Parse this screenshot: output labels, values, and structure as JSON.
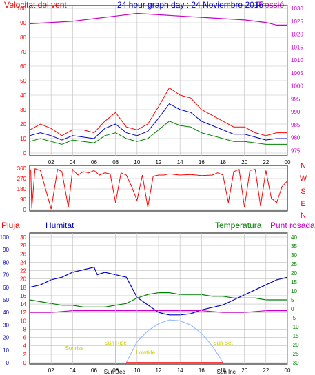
{
  "header": {
    "title": "24 hour graph day : 24 Noviembre 2015",
    "left_label": "Velocitat del vent",
    "right_label": "Pressió"
  },
  "colors": {
    "frame": "#000000",
    "red": "#ff0000",
    "blue": "#0000cc",
    "green": "#008000",
    "magenta": "#cc00cc",
    "yellow": "#cccc00",
    "lightblue": "#99bbff",
    "grid": "#bdbdbd"
  },
  "chart_data": [
    {
      "type": "line",
      "panel": "wind",
      "xlabel": "",
      "ylabel": "",
      "x_ticks": [
        "02",
        "04",
        "06",
        "08",
        "10",
        "12",
        "14",
        "16",
        "18",
        "20",
        "22",
        "00"
      ],
      "y_left_ticks": [
        0,
        10,
        20,
        30,
        40,
        50,
        60,
        70,
        80,
        90,
        100
      ],
      "y_left_lim": [
        0,
        100
      ],
      "y_right_ticks": [
        975,
        980,
        985,
        990,
        995,
        1000,
        1005,
        1010,
        1015,
        1020,
        1025,
        1030
      ],
      "y_right_lim": [
        974,
        1030
      ],
      "grid": true,
      "series": [
        {
          "color": "red",
          "kind": "gusts",
          "axis": "left",
          "hours": [
            0,
            1,
            2,
            3,
            4,
            5,
            6,
            7,
            8,
            9,
            10,
            11,
            12,
            13,
            14,
            15,
            16,
            17,
            18,
            19,
            20,
            21,
            22,
            23,
            24
          ],
          "values": [
            16,
            20,
            17,
            12,
            16,
            16,
            14,
            22,
            28,
            18,
            16,
            20,
            32,
            45,
            40,
            38,
            30,
            26,
            22,
            18,
            18,
            14,
            12,
            14,
            14
          ]
        },
        {
          "color": "blue",
          "kind": "speed",
          "axis": "left",
          "hours": [
            0,
            1,
            2,
            3,
            4,
            5,
            6,
            7,
            8,
            9,
            10,
            11,
            12,
            13,
            14,
            15,
            16,
            17,
            18,
            19,
            20,
            21,
            22,
            23,
            24
          ],
          "values": [
            12,
            14,
            12,
            9,
            12,
            11,
            10,
            17,
            20,
            14,
            12,
            15,
            24,
            34,
            30,
            28,
            22,
            19,
            16,
            13,
            13,
            11,
            9,
            10,
            10
          ]
        },
        {
          "color": "green",
          "kind": "direction-average",
          "axis": "left",
          "hours": [
            0,
            1,
            2,
            3,
            4,
            5,
            6,
            7,
            8,
            9,
            10,
            11,
            12,
            13,
            14,
            15,
            16,
            17,
            18,
            19,
            20,
            21,
            22,
            23,
            24
          ],
          "values": [
            8,
            10,
            8,
            6,
            9,
            8,
            7,
            12,
            14,
            10,
            8,
            10,
            16,
            22,
            19,
            18,
            14,
            12,
            10,
            8,
            8,
            7,
            6,
            6,
            6
          ]
        },
        {
          "color": "magenta",
          "kind": "pressure",
          "axis": "right",
          "hours": [
            0,
            2,
            4,
            6,
            8,
            10,
            12,
            14,
            16,
            18,
            20,
            22,
            23,
            24
          ],
          "values": [
            1024,
            1024.5,
            1025,
            1026,
            1027,
            1028,
            1027.5,
            1027,
            1026.5,
            1026,
            1025.5,
            1024.5,
            1023.5,
            1023.5
          ]
        }
      ]
    },
    {
      "type": "scatter",
      "panel": "direction",
      "y_ticks": [
        0,
        90,
        180,
        270,
        360
      ],
      "y_lim": [
        0,
        360
      ],
      "compass_labels": [
        "N",
        "W",
        "S",
        "E",
        "N"
      ],
      "points": [
        [
          0.1,
          350
        ],
        [
          0.2,
          10
        ],
        [
          0.5,
          355
        ],
        [
          1,
          340
        ],
        [
          2,
          5
        ],
        [
          2.6,
          350
        ],
        [
          3,
          330
        ],
        [
          3.6,
          20
        ],
        [
          4,
          350
        ],
        [
          4.5,
          300
        ],
        [
          5,
          330
        ],
        [
          5.5,
          320
        ],
        [
          6,
          340
        ],
        [
          6.5,
          300
        ],
        [
          7,
          320
        ],
        [
          7.5,
          310
        ],
        [
          8,
          60
        ],
        [
          8.5,
          320
        ],
        [
          9,
          300
        ],
        [
          9.5,
          200
        ],
        [
          10,
          80
        ],
        [
          10.5,
          300
        ],
        [
          11,
          20
        ],
        [
          11.5,
          290
        ],
        [
          12,
          300
        ],
        [
          12.5,
          300
        ],
        [
          13,
          310
        ],
        [
          14,
          300
        ],
        [
          15,
          305
        ],
        [
          16,
          295
        ],
        [
          17,
          300
        ],
        [
          17.5,
          320
        ],
        [
          18,
          300
        ],
        [
          18.5,
          60
        ],
        [
          19,
          330
        ],
        [
          19.5,
          350
        ],
        [
          20,
          20
        ],
        [
          20.5,
          340
        ],
        [
          21,
          350
        ],
        [
          21.5,
          30
        ],
        [
          22,
          340
        ],
        [
          22.5,
          100
        ],
        [
          23,
          60
        ],
        [
          23.5,
          200
        ],
        [
          24,
          250
        ]
      ]
    },
    {
      "type": "line",
      "panel": "weather",
      "labels": {
        "rain": "Pluja",
        "humidity": "Humitat",
        "temperature": "Temperatura",
        "dewpoint": "Punt rosada"
      },
      "y_humidity_ticks": [
        0,
        10,
        20,
        30,
        40,
        50,
        60,
        70,
        80,
        90,
        100
      ],
      "y_humidity_lim": [
        0,
        100
      ],
      "y_rain_ticks": [
        0,
        2,
        4,
        6,
        8,
        10,
        12,
        14,
        16,
        18,
        20,
        22,
        24,
        26,
        28,
        30
      ],
      "y_rain_lim": [
        0,
        30
      ],
      "y_temp_ticks": [
        -30,
        -25,
        -20,
        -15,
        -10,
        -5,
        0,
        5,
        10,
        15,
        20,
        25,
        30,
        35,
        40
      ],
      "y_temp_lim": [
        -30,
        40
      ],
      "series": [
        {
          "color": "blue",
          "kind": "humidity",
          "axis": "humidity",
          "hours": [
            0,
            1,
            2,
            3,
            4,
            5,
            6,
            6.3,
            7,
            8,
            9,
            10,
            11,
            12,
            13,
            14,
            15,
            16,
            17,
            18,
            19,
            20,
            21,
            22,
            23,
            24
          ],
          "values": [
            60,
            62,
            66,
            68,
            72,
            74,
            76,
            70,
            72,
            70,
            68,
            52,
            46,
            40,
            38,
            38,
            39,
            42,
            44,
            46,
            50,
            54,
            58,
            62,
            66,
            68
          ]
        },
        {
          "color": "green",
          "kind": "temperature",
          "axis": "temperature",
          "hours": [
            0,
            1,
            2,
            3,
            4,
            5,
            6,
            7,
            8,
            9,
            10,
            11,
            12,
            13,
            14,
            15,
            16,
            17,
            18,
            19,
            20,
            21,
            22,
            23,
            24
          ],
          "values": [
            5,
            4,
            3,
            2,
            2,
            1,
            1,
            1,
            2,
            3,
            6,
            8,
            9,
            9,
            8,
            8,
            8,
            7,
            7,
            6,
            6,
            6,
            5,
            5,
            5
          ]
        },
        {
          "color": "magenta",
          "kind": "dewpoint",
          "axis": "temperature",
          "hours": [
            0,
            2,
            4,
            6,
            8,
            10,
            12,
            14,
            16,
            18,
            20,
            22,
            24
          ],
          "values": [
            -2,
            -2,
            -1,
            -1,
            -1,
            -1,
            -1,
            -1,
            -1,
            -2,
            -2,
            -1,
            -1
          ]
        },
        {
          "color": "lightblue",
          "kind": "solar-altitude",
          "axis": "rain",
          "hours": [
            9,
            10,
            11,
            12,
            13,
            14,
            15,
            16,
            17,
            18
          ],
          "values": [
            0,
            5,
            7.6,
            9.3,
            10.2,
            10,
            9,
            7,
            4,
            0
          ]
        }
      ],
      "markers": [
        {
          "label": "Sunrise",
          "hour": 8,
          "color": "yellow"
        },
        {
          "label": "Sun Rise",
          "hour": 8,
          "color": "yellow"
        },
        {
          "label": "Lowtide",
          "hour": 10.8,
          "color": "yellow"
        },
        {
          "label": "Sun Set",
          "hour": 18,
          "color": "yellow"
        },
        {
          "label": "Sun Dec",
          "hour": 7.9,
          "color": "black"
        },
        {
          "label": "Sun Inc",
          "hour": 18.3,
          "color": "black"
        }
      ]
    }
  ]
}
